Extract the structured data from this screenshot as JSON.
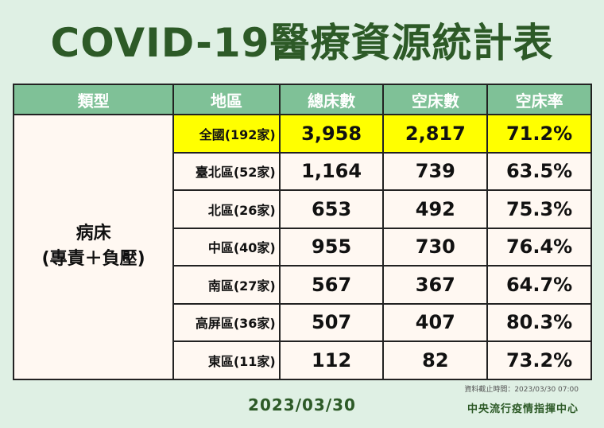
{
  "title": "COVID-19醫療資源統計表",
  "headers": {
    "type": "類型",
    "region": "地區",
    "total_beds": "總床數",
    "empty_beds": "空床數",
    "empty_rate": "空床率"
  },
  "category": {
    "line1": "病床",
    "line2": "(專責＋負壓)"
  },
  "rows": [
    {
      "region": "全國(192家)",
      "total": "3,958",
      "empty": "2,817",
      "rate": "71.2%"
    },
    {
      "region": "臺北區(52家)",
      "total": "1,164",
      "empty": "739",
      "rate": "63.5%"
    },
    {
      "region": "北區(26家)",
      "total": "653",
      "empty": "492",
      "rate": "75.3%"
    },
    {
      "region": "中區(40家)",
      "total": "955",
      "empty": "730",
      "rate": "76.4%"
    },
    {
      "region": "南區(27家)",
      "total": "567",
      "empty": "367",
      "rate": "64.7%"
    },
    {
      "region": "高屏區(36家)",
      "total": "507",
      "empty": "407",
      "rate": "80.3%"
    },
    {
      "region": "東區(11家)",
      "total": "112",
      "empty": "82",
      "rate": "73.2%"
    }
  ],
  "date": "2023/03/30",
  "data_timestamp": "資料截止時間：2023/03/30 07:00",
  "source": "中央流行疫情指揮中心",
  "colors": {
    "background": "#dff0e4",
    "title": "#2d5a27",
    "header": "#7fc197",
    "highlight": "#ffff00"
  }
}
